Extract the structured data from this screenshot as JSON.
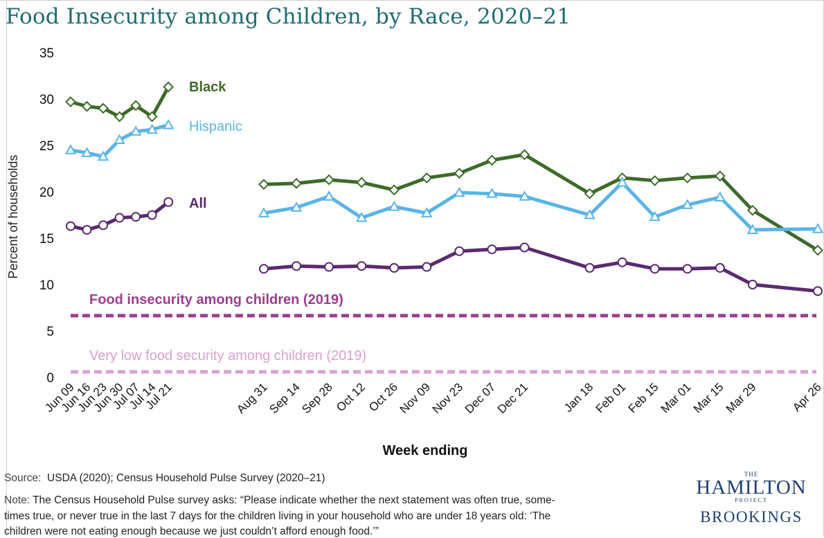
{
  "header": {
    "title": "Food Insecurity among Children, by Race, 2020–21"
  },
  "chart_data": {
    "type": "line",
    "xlabel": "Week ending",
    "ylabel": "Percent of households",
    "ylim": [
      0,
      35
    ],
    "yticks": [
      0,
      5,
      10,
      15,
      20,
      25,
      30,
      35
    ],
    "grid": false,
    "categories": [
      "Jun 09",
      "Jun 16",
      "Jun 23",
      "Jun 30",
      "Jul 07",
      "Jul 14",
      "Jul 21",
      "Aug 31",
      "Sep 14",
      "Sep 28",
      "Oct 12",
      "Oct 26",
      "Nov 09",
      "Nov 23",
      "Dec 07",
      "Dec 21",
      "Jan 18",
      "Feb 01",
      "Feb 15",
      "Mar 01",
      "Mar 15",
      "Mar 29",
      "Apr 26"
    ],
    "x_dates": [
      "2020-06-09",
      "2020-06-16",
      "2020-06-23",
      "2020-06-30",
      "2020-07-07",
      "2020-07-14",
      "2020-07-21",
      "2020-08-31",
      "2020-09-14",
      "2020-09-28",
      "2020-10-12",
      "2020-10-26",
      "2020-11-09",
      "2020-11-23",
      "2020-12-07",
      "2020-12-21",
      "2021-01-18",
      "2021-02-01",
      "2021-02-15",
      "2021-03-01",
      "2021-03-15",
      "2021-03-29",
      "2021-04-26"
    ],
    "series": [
      {
        "name": "Black",
        "color": "#3d6b2a",
        "marker": "diamond",
        "values": [
          29.7,
          29.2,
          29.0,
          28.1,
          29.3,
          28.1,
          31.3,
          20.8,
          20.9,
          21.3,
          21.0,
          20.2,
          21.5,
          22.0,
          23.4,
          24.0,
          19.8,
          21.5,
          21.2,
          21.5,
          21.7,
          18.0,
          13.7
        ]
      },
      {
        "name": "Hispanic",
        "color": "#5ab4e6",
        "marker": "triangle",
        "values": [
          24.5,
          24.2,
          23.8,
          25.6,
          26.5,
          26.7,
          27.2,
          17.7,
          18.3,
          19.5,
          17.2,
          18.4,
          17.7,
          19.9,
          19.8,
          19.5,
          17.5,
          21.0,
          17.3,
          18.6,
          19.4,
          15.9,
          16.0
        ]
      },
      {
        "name": "All",
        "color": "#5a2a6e",
        "marker": "circle",
        "values": [
          16.3,
          15.9,
          16.4,
          17.2,
          17.3,
          17.5,
          18.9,
          11.7,
          12.0,
          11.9,
          12.0,
          11.8,
          11.9,
          13.6,
          13.8,
          14.0,
          11.8,
          12.4,
          11.7,
          11.7,
          11.8,
          10.0,
          9.3
        ]
      }
    ],
    "reference_lines": [
      {
        "label": "Food insecurity among children (2019)",
        "value": 6.5,
        "color": "#9b3f8c"
      },
      {
        "label": "Very low food security among children (2019)",
        "value": 0.6,
        "color": "#d9a0d4"
      }
    ]
  },
  "footer": {
    "source_label": "Source:",
    "source_text": "USDA (2020); Census Household Pulse Survey (2020–21)",
    "note_label": "Note:",
    "note_line1": "The Census Household Pulse survey asks: “Please indicate whether the next statement was often true, some-",
    "note_line2": "times true, or never true in the last 7 days for the children living in your household who are under 18 years old: ‘The",
    "note_line3": "children were not eating enough because we just couldn’t afford enough food.’”"
  },
  "logo": {
    "the": "THE",
    "hamilton": "HAMILTON",
    "project": "PROJECT",
    "brookings": "BROOKINGS"
  }
}
